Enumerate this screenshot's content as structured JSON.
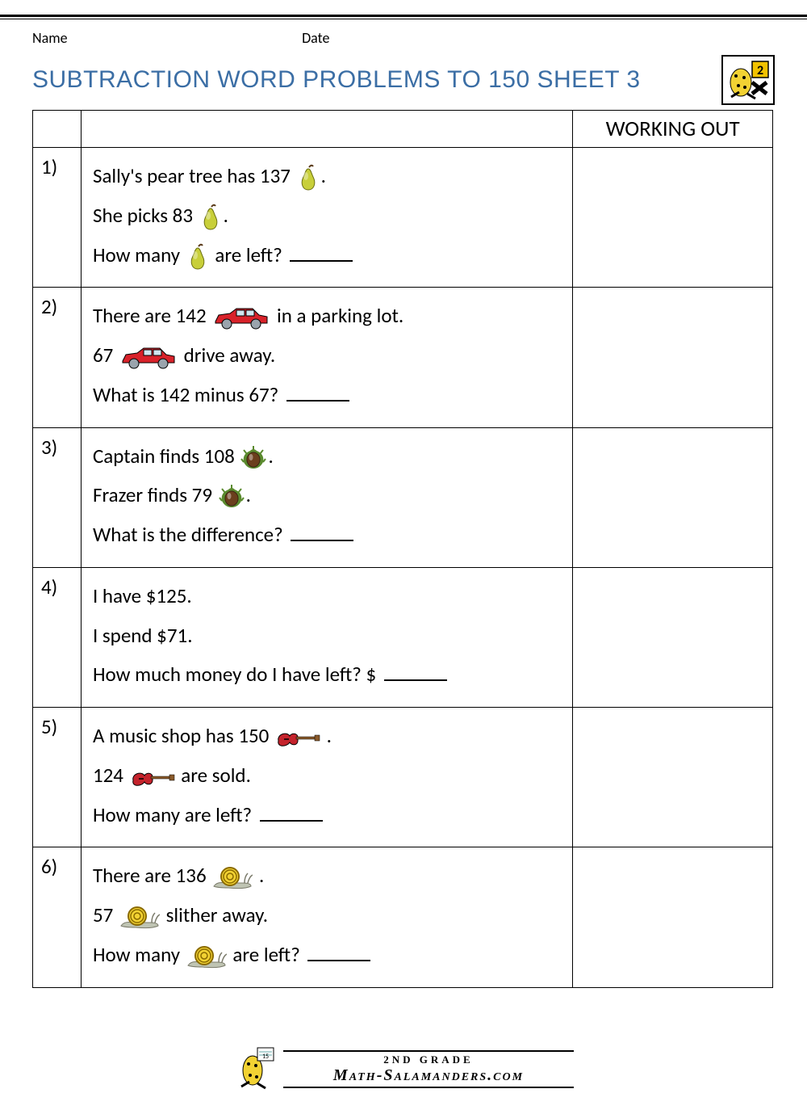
{
  "header": {
    "name_label": "Name",
    "date_label": "Date"
  },
  "title": "SUBTRACTION WORD PROBLEMS TO 150 SHEET 3",
  "working_out_header": "WORKING OUT",
  "icons": {
    "pear": {
      "fill": "#c8cf3a",
      "stroke": "#6b6f12"
    },
    "car": {
      "body": "#d8222a",
      "wheels": "#9aa4ad",
      "outline": "#000"
    },
    "nut": {
      "shell": "#6b3f1d",
      "spikes": "#5a8a2e"
    },
    "guitar": {
      "body": "#c4232c",
      "neck": "#8a5a2b"
    },
    "snail": {
      "shell": "#f2d233",
      "body": "#bfc4b3"
    }
  },
  "problems": [
    {
      "num": "1)",
      "lines": [
        [
          {
            "t": "Sally's pear tree has 137 "
          },
          {
            "icon": "pear"
          },
          {
            "t": "."
          }
        ],
        [
          {
            "t": "She picks 83 "
          },
          {
            "icon": "pear"
          },
          {
            "t": "."
          }
        ],
        [
          {
            "t": "How many "
          },
          {
            "icon": "pear"
          },
          {
            "t": " are left? "
          },
          {
            "blank": true
          }
        ]
      ]
    },
    {
      "num": "2)",
      "lines": [
        [
          {
            "t": "There are 142 "
          },
          {
            "icon": "car"
          },
          {
            "t": " in a parking lot."
          }
        ],
        [
          {
            "t": "67 "
          },
          {
            "icon": "car"
          },
          {
            "t": " drive away."
          }
        ],
        [
          {
            "t": "What is 142 minus 67? "
          },
          {
            "blank": true
          }
        ]
      ]
    },
    {
      "num": "3)",
      "lines": [
        [
          {
            "t": "Captain finds 108 "
          },
          {
            "icon": "nut"
          },
          {
            "t": "."
          }
        ],
        [
          {
            "t": "Frazer finds 79 "
          },
          {
            "icon": "nut"
          },
          {
            "t": "."
          }
        ],
        [
          {
            "t": "What is the difference? "
          },
          {
            "blank": true
          }
        ]
      ]
    },
    {
      "num": "4)",
      "lines": [
        [
          {
            "t": "I have $125."
          }
        ],
        [
          {
            "t": "I spend $71."
          }
        ],
        [
          {
            "t": "How much money do I have left? $ "
          },
          {
            "blank": true
          }
        ]
      ]
    },
    {
      "num": "5)",
      "lines": [
        [
          {
            "t": "A music shop has 150 "
          },
          {
            "icon": "guitar"
          },
          {
            "t": " ."
          }
        ],
        [
          {
            "t": "124 "
          },
          {
            "icon": "guitar"
          },
          {
            "t": "  are sold."
          }
        ],
        [
          {
            "t": "How many are left? "
          },
          {
            "blank": true
          }
        ]
      ]
    },
    {
      "num": "6)",
      "lines": [
        [
          {
            "t": "There are 136  "
          },
          {
            "icon": "snail"
          },
          {
            "t": " ."
          }
        ],
        [
          {
            "t": "57 "
          },
          {
            "icon": "snail"
          },
          {
            "t": "  slither away."
          }
        ],
        [
          {
            "t": "How many  "
          },
          {
            "icon": "snail"
          },
          {
            "t": " are left? "
          },
          {
            "blank": true
          }
        ]
      ]
    }
  ],
  "footer": {
    "grade": "2ND GRADE",
    "site": "Math-Salamanders.com"
  },
  "logo_badge": "2"
}
